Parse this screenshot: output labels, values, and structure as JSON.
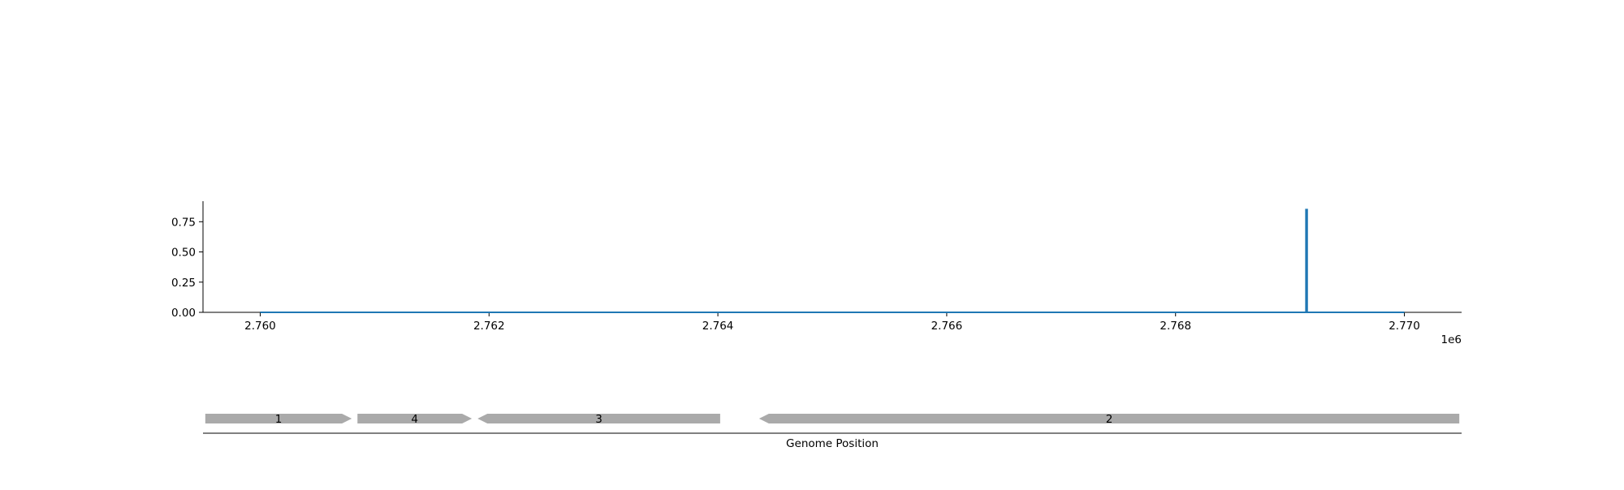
{
  "chart_data": [
    {
      "type": "line",
      "x_offset_label": "1e6",
      "xlim": [
        2759500,
        2770500
      ],
      "ylim": [
        0,
        0.92
      ],
      "x_ticks": [
        2760000,
        2762000,
        2764000,
        2766000,
        2768000,
        2770000
      ],
      "x_tick_labels": [
        "2.760",
        "2.762",
        "2.764",
        "2.766",
        "2.768",
        "2.770"
      ],
      "y_ticks": [
        0,
        0.25,
        0.5,
        0.75
      ],
      "y_tick_labels": [
        "0.00",
        "0.25",
        "0.50",
        "0.75"
      ],
      "grid": false,
      "series": [
        {
          "color": "#1f77b4",
          "x": [
            2760000,
            2769140,
            2769140,
            2769150,
            2769150,
            2770000
          ],
          "y": [
            0,
            0,
            0.85,
            0.85,
            0,
            0
          ]
        }
      ]
    },
    {
      "type": "gene-track",
      "xlabel": "Genome Position",
      "xlim": [
        2759500,
        2770500
      ],
      "genes": [
        {
          "label": "1",
          "start": 2759520,
          "end": 2760800,
          "strand": "+",
          "color": "#aaaaaa"
        },
        {
          "label": "4",
          "start": 2760850,
          "end": 2761850,
          "strand": "+",
          "color": "#aaaaaa"
        },
        {
          "label": "3",
          "start": 2761900,
          "end": 2764020,
          "strand": "-",
          "color": "#aaaaaa"
        },
        {
          "label": "2",
          "start": 2764360,
          "end": 2770480,
          "strand": "-",
          "color": "#aaaaaa"
        }
      ]
    }
  ]
}
